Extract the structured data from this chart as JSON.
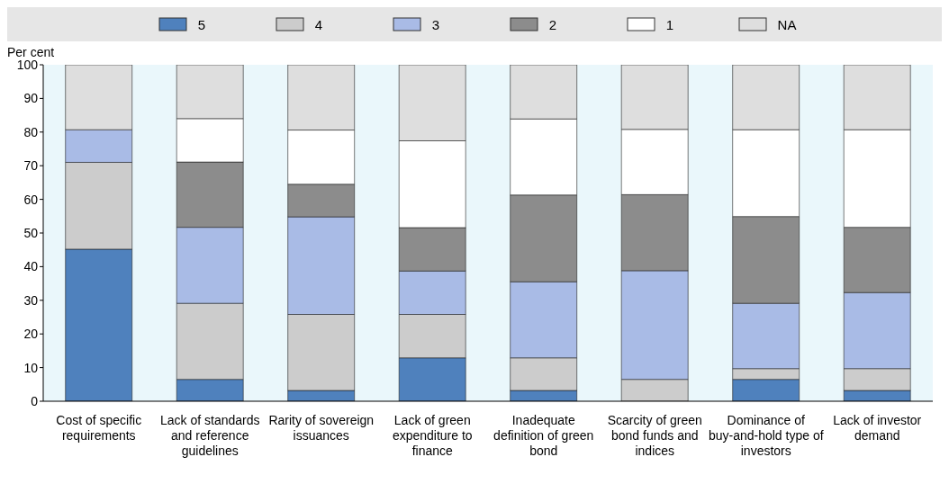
{
  "chart_data": {
    "type": "bar",
    "stacked": true,
    "ylabel": "Per cent",
    "legend": "top",
    "categories": [
      "Cost of specific requirements",
      "Lack of standards and reference guidelines",
      "Rarity of sovereign issuances",
      "Lack of green expenditure to finance",
      "Inadequate definition of green bond",
      "Scarcity of green bond funds and indices",
      "Dominance of buy-and-hold type of investors",
      "Lack of investor demand"
    ],
    "series": [
      {
        "name": "5",
        "color": "#4f81bd",
        "values": [
          45.2,
          6.5,
          3.2,
          12.9,
          3.2,
          0,
          6.5,
          3.2
        ]
      },
      {
        "name": "4",
        "color": "#cccccc",
        "values": [
          25.8,
          22.6,
          22.6,
          12.9,
          9.7,
          6.5,
          3.2,
          6.5
        ]
      },
      {
        "name": "3",
        "color": "#a9bbe6",
        "values": [
          9.7,
          22.6,
          29.0,
          12.9,
          22.6,
          32.3,
          19.4,
          22.6
        ]
      },
      {
        "name": "2",
        "color": "#8c8c8c",
        "values": [
          0,
          19.4,
          9.7,
          12.9,
          25.8,
          22.6,
          25.8,
          19.4
        ]
      },
      {
        "name": "1",
        "color": "#ffffff",
        "values": [
          0,
          12.9,
          16.1,
          25.8,
          22.6,
          19.4,
          25.8,
          29.0
        ]
      },
      {
        "name": "NA",
        "color": "#dedede",
        "values": [
          19.4,
          16.1,
          19.4,
          22.6,
          16.1,
          19.4,
          19.4,
          19.4
        ]
      }
    ],
    "ylim": [
      0,
      100
    ],
    "yticks": [
      0,
      10,
      20,
      30,
      40,
      50,
      60,
      70,
      80,
      90,
      100
    ],
    "grid": false
  }
}
